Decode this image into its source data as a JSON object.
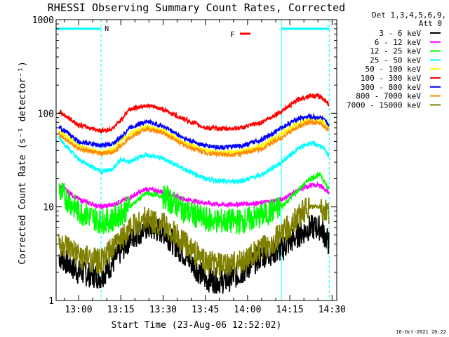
{
  "chart_data": {
    "type": "line",
    "title": "RHESSI Observing Summary Count Rates, Corrected",
    "xlabel": "Start Time (23-Aug-06 12:52:02)",
    "ylabel": "Corrected Count Rate (s⁻¹ detector⁻¹)",
    "yscale": "log",
    "ylim": [
      1,
      1000
    ],
    "xlim": [
      "12:52:02",
      "14:31:40"
    ],
    "x_ticks": [
      "13:00",
      "13:15",
      "13:30",
      "13:45",
      "14:00",
      "14:15",
      "14:30"
    ],
    "y_ticks": [
      "1",
      "10",
      "100",
      "1000"
    ],
    "legend_header": [
      "Det 1,3,4,5,6,9,",
      "Att 0"
    ],
    "legend_position": "right",
    "footer_timestamp": "16-Oct-2021 20:22",
    "annotations": {
      "night_label": "N",
      "flare_label": "F",
      "night_intervals": [
        [
          "12:52",
          "13:08"
        ],
        [
          "14:12",
          "14:29"
        ]
      ]
    },
    "series": [
      {
        "name": "3 - 6 keV",
        "color": "#000000",
        "x": [
          "12:53",
          "13:00",
          "13:08",
          "13:12",
          "13:18",
          "13:24",
          "13:30",
          "13:38",
          "13:45",
          "13:52",
          "13:58",
          "14:05",
          "14:12",
          "14:18",
          "14:22",
          "14:26",
          "14:29"
        ],
        "y": [
          3,
          2,
          1.8,
          2.5,
          4.5,
          6,
          5.5,
          3,
          1.7,
          1.6,
          2,
          3,
          3.5,
          5,
          6,
          6,
          4
        ]
      },
      {
        "name": "6 - 12 keV",
        "color": "#ff00ff",
        "x": [
          "12:53",
          "13:00",
          "13:08",
          "13:12",
          "13:18",
          "13:24",
          "13:30",
          "13:38",
          "13:45",
          "13:52",
          "13:58",
          "14:05",
          "14:12",
          "14:18",
          "14:22",
          "14:26",
          "14:29"
        ],
        "y": [
          17,
          12,
          10,
          10.5,
          12.5,
          15.5,
          14.5,
          12,
          11,
          10.5,
          10.8,
          11,
          12,
          15,
          17,
          17,
          14
        ]
      },
      {
        "name": "12 - 25 keV",
        "color": "#00ff00",
        "x": [
          "12:53",
          "13:00",
          "13:08",
          "13:12",
          "13:18",
          "13:24",
          "13:30",
          "13:38",
          "13:45",
          "13:52",
          "13:58",
          "14:05",
          "14:12",
          "14:18",
          "14:22",
          "14:26",
          "14:29"
        ],
        "y": [
          15,
          9,
          7,
          7.3,
          10,
          14,
          13,
          9,
          7.3,
          7,
          7,
          8,
          10,
          15,
          20,
          22,
          15
        ]
      },
      {
        "name": "25 - 50 keV",
        "color": "#00ffff",
        "x": [
          "12:53",
          "13:00",
          "13:08",
          "13:12",
          "13:15",
          "13:18",
          "13:24",
          "13:30",
          "13:38",
          "13:45",
          "13:52",
          "13:58",
          "14:05",
          "14:12",
          "14:18",
          "14:22",
          "14:26",
          "14:29"
        ],
        "y": [
          55,
          32,
          24,
          25,
          32,
          30,
          36,
          33,
          25,
          20,
          18.5,
          19,
          22,
          30,
          42,
          48,
          45,
          35
        ]
      },
      {
        "name": "50 - 100 keV",
        "color": "#ffff00",
        "x": [
          "12:53",
          "13:00",
          "13:08",
          "13:12",
          "13:15",
          "13:18",
          "13:24",
          "13:30",
          "13:38",
          "13:45",
          "13:52",
          "13:58",
          "14:05",
          "14:12",
          "14:18",
          "14:22",
          "14:26",
          "14:29"
        ],
        "y": [
          65,
          45,
          38,
          40,
          50,
          60,
          72,
          65,
          48,
          40,
          38,
          39,
          45,
          60,
          78,
          88,
          85,
          70
        ]
      },
      {
        "name": "100 - 300 keV",
        "color": "#ff0000",
        "x": [
          "12:53",
          "13:00",
          "13:08",
          "13:12",
          "13:15",
          "13:18",
          "13:24",
          "13:30",
          "13:38",
          "13:45",
          "13:52",
          "13:58",
          "14:05",
          "14:12",
          "14:18",
          "14:22",
          "14:26",
          "14:29"
        ],
        "y": [
          105,
          75,
          65,
          68,
          85,
          110,
          122,
          110,
          85,
          70,
          68,
          70,
          80,
          105,
          140,
          155,
          150,
          125
        ]
      },
      {
        "name": "300 - 800 keV",
        "color": "#0000ff",
        "x": [
          "12:53",
          "13:00",
          "13:08",
          "13:12",
          "13:15",
          "13:18",
          "13:24",
          "13:30",
          "13:38",
          "13:45",
          "13:52",
          "13:58",
          "14:05",
          "14:12",
          "14:18",
          "14:22",
          "14:26",
          "14:29"
        ],
        "y": [
          72,
          50,
          45,
          47,
          55,
          70,
          82,
          73,
          53,
          45,
          43,
          45,
          52,
          70,
          88,
          92,
          90,
          75
        ]
      },
      {
        "name": "800 - 7000 keV",
        "color": "#ff8c00",
        "x": [
          "12:53",
          "13:00",
          "13:08",
          "13:12",
          "13:15",
          "13:18",
          "13:24",
          "13:30",
          "13:38",
          "13:45",
          "13:52",
          "13:58",
          "14:05",
          "14:12",
          "14:18",
          "14:22",
          "14:26",
          "14:29"
        ],
        "y": [
          60,
          42,
          37,
          38,
          45,
          55,
          68,
          62,
          45,
          38,
          36,
          37,
          42,
          55,
          72,
          80,
          78,
          65
        ]
      },
      {
        "name": "7000 - 15000 keV",
        "color": "#808000",
        "x": [
          "12:53",
          "13:00",
          "13:08",
          "13:12",
          "13:18",
          "13:24",
          "13:30",
          "13:38",
          "13:45",
          "13:52",
          "13:58",
          "14:05",
          "14:12",
          "14:18",
          "14:22",
          "14:26",
          "14:29"
        ],
        "y": [
          4,
          3,
          2.6,
          3.5,
          6,
          7.5,
          6.5,
          4,
          2.6,
          2.3,
          2.6,
          3.5,
          5,
          8,
          10,
          10,
          8
        ]
      }
    ]
  }
}
